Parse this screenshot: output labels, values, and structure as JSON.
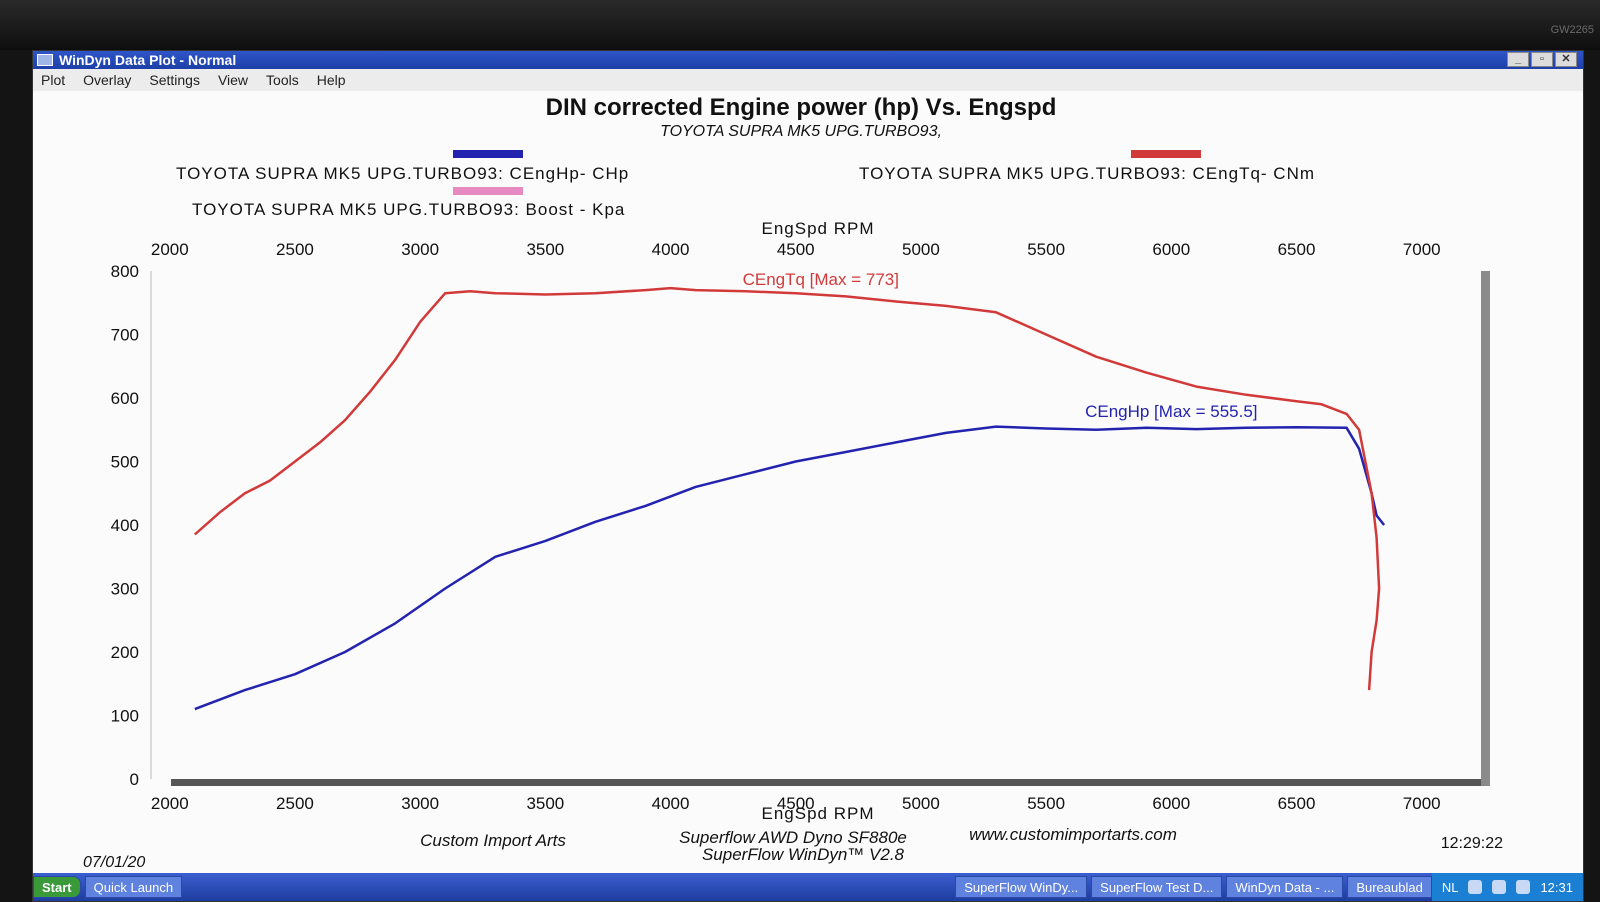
{
  "monitor_label": "GW2265",
  "window": {
    "title": "WinDyn Data Plot - Normal",
    "menu": [
      "Plot",
      "Overlay",
      "Settings",
      "View",
      "Tools",
      "Help"
    ],
    "controls": [
      "_",
      "▫",
      "✕"
    ]
  },
  "footer": {
    "date": "07/01/20",
    "time": "12:29:22",
    "shop": "Custom Import Arts",
    "dyno": "Superflow AWD Dyno SF880e",
    "website": "www.customimportarts.com",
    "software": "SuperFlow WinDyn™ V2.8"
  },
  "taskbar": {
    "start": "Start",
    "quick_launch": "Quick Launch",
    "tasks": [
      "SuperFlow WinDy...",
      "SuperFlow Test D...",
      "WinDyn Data - ..."
    ],
    "tray_label": "Bureaublad",
    "language": "NL",
    "clock": "12:31"
  },
  "colors": {
    "hp": "#2323b0",
    "torque": "#d23a3a",
    "boost": "#e88ac2",
    "axis": "#555555"
  },
  "chart_data": {
    "type": "line",
    "title": "DIN corrected Engine power (hp) Vs. Engspd",
    "subtitle": "TOYOTA SUPRA MK5 UPG.TURBO93,",
    "xlabel": "EngSpd  RPM",
    "xlim": [
      1925,
      7125
    ],
    "ylim": [
      0,
      800
    ],
    "x_ticks": [
      2000,
      2500,
      3000,
      3500,
      4000,
      4500,
      5000,
      5500,
      6000,
      6500,
      7000
    ],
    "y_ticks": [
      0,
      100,
      200,
      300,
      400,
      500,
      600,
      700,
      800
    ],
    "legend": [
      {
        "label": "TOYOTA SUPRA MK5 UPG.TURBO93: CEngHp-  CHp",
        "color": "#2323b0"
      },
      {
        "label": "TOYOTA SUPRA MK5 UPG.TURBO93: CEngTq-  CNm",
        "color": "#d23a3a"
      },
      {
        "label": "TOYOTA SUPRA MK5 UPG.TURBO93: Boost - Kpa",
        "color": "#e88ac2"
      }
    ],
    "series": [
      {
        "key": "hp",
        "annotation": "CEngHp [Max = 555.5]",
        "annotation_at": [
          6000,
          570
        ],
        "x": [
          2100,
          2300,
          2500,
          2700,
          2900,
          3100,
          3300,
          3500,
          3700,
          3900,
          4100,
          4300,
          4500,
          4700,
          4900,
          5100,
          5300,
          5500,
          5700,
          5900,
          6100,
          6300,
          6500,
          6700,
          6750,
          6800,
          6820,
          6850
        ],
        "y": [
          110,
          140,
          165,
          200,
          245,
          300,
          350,
          375,
          405,
          430,
          460,
          480,
          500,
          515,
          530,
          545,
          555,
          552,
          550,
          553,
          551,
          553,
          554,
          553,
          520,
          450,
          415,
          400
        ]
      },
      {
        "key": "torque",
        "annotation": "CEngTq [Max = 773]",
        "annotation_at": [
          4600,
          778
        ],
        "x": [
          2100,
          2200,
          2300,
          2400,
          2500,
          2600,
          2700,
          2800,
          2900,
          3000,
          3100,
          3200,
          3300,
          3500,
          3700,
          3900,
          4000,
          4100,
          4300,
          4500,
          4700,
          4900,
          5100,
          5300,
          5500,
          5700,
          5900,
          6100,
          6300,
          6500,
          6600,
          6700,
          6750,
          6800,
          6820,
          6830,
          6820,
          6800,
          6790
        ],
        "y": [
          385,
          420,
          450,
          470,
          500,
          530,
          565,
          610,
          660,
          720,
          765,
          768,
          765,
          763,
          765,
          770,
          773,
          770,
          768,
          765,
          760,
          752,
          745,
          735,
          700,
          665,
          640,
          618,
          605,
          595,
          590,
          575,
          550,
          450,
          380,
          300,
          250,
          200,
          140
        ]
      }
    ],
    "grid": false
  }
}
